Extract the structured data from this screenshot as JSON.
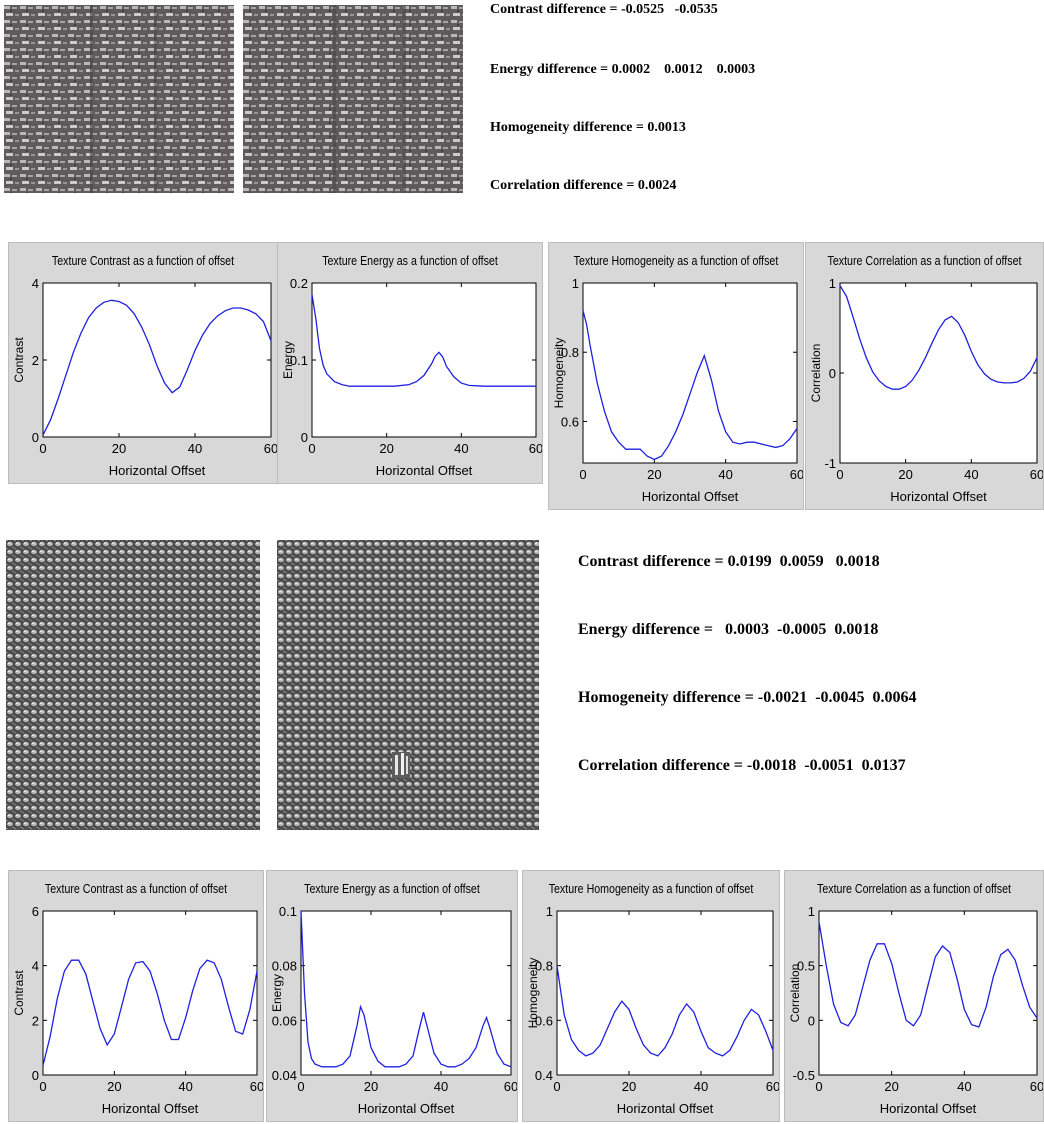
{
  "section1": {
    "stats": [
      {
        "label": "Contrast difference = ",
        "values": "-0.0525   -0.0535"
      },
      {
        "label": "Energy difference = ",
        "values": "0.0002    0.0012    0.0003"
      },
      {
        "label": "Homogeneity difference = ",
        "values": "0.0013"
      },
      {
        "label": "Correlation difference = ",
        "values": "0.0024"
      }
    ]
  },
  "section2": {
    "stats": [
      {
        "label": "Contrast difference = ",
        "values": "0.0199  0.0059   0.0018"
      },
      {
        "label": "Energy difference = ",
        "values": "  0.0003  -0.0005  0.0018"
      },
      {
        "label": "Homogeneity difference = ",
        "values": "-0.0021  -0.0045  0.0064"
      },
      {
        "label": "Correlation difference = ",
        "values": "-0.0018  -0.0051  0.0137"
      }
    ]
  },
  "colors": {
    "line": "#2020e0",
    "panel": "#d8d8d8",
    "axes_bg": "#ffffff",
    "fabric1": "#6f6868",
    "fabric2": "#5a5a5a"
  },
  "chart_data": [
    {
      "type": "line",
      "title": "Texture Contrast as a function of offset",
      "xlabel": "Horizontal Offset",
      "ylabel": "Contrast",
      "xlim": [
        0,
        60
      ],
      "ylim": [
        0,
        4
      ],
      "xticks": [
        "0",
        "20",
        "40",
        "60"
      ],
      "yticks": [
        "0",
        "2",
        "4"
      ],
      "ytickvals": [
        0,
        2,
        4
      ],
      "x": [
        0,
        2,
        4,
        6,
        8,
        10,
        12,
        14,
        16,
        18,
        20,
        22,
        24,
        26,
        28,
        30,
        32,
        34,
        36,
        38,
        40,
        42,
        44,
        46,
        48,
        50,
        52,
        54,
        56,
        58,
        60
      ],
      "series": [
        {
          "values": [
            0.05,
            0.45,
            1.0,
            1.6,
            2.2,
            2.7,
            3.1,
            3.35,
            3.5,
            3.55,
            3.52,
            3.42,
            3.2,
            2.85,
            2.4,
            1.85,
            1.4,
            1.15,
            1.3,
            1.75,
            2.25,
            2.65,
            2.95,
            3.15,
            3.28,
            3.35,
            3.35,
            3.3,
            3.2,
            3.0,
            2.5
          ]
        }
      ]
    },
    {
      "type": "line",
      "title": "Texture Energy as a function of offset",
      "xlabel": "Horizontal Offset",
      "ylabel": "Energy",
      "xlim": [
        0,
        60
      ],
      "ylim": [
        0,
        0.2
      ],
      "xticks": [
        "0",
        "20",
        "40",
        "60"
      ],
      "yticks": [
        "0",
        "0.1",
        "0.2"
      ],
      "ytickvals": [
        0,
        0.1,
        0.2
      ],
      "x": [
        0,
        1,
        2,
        3,
        4,
        6,
        8,
        10,
        14,
        18,
        22,
        26,
        28,
        30,
        32,
        33,
        34,
        35,
        36,
        38,
        40,
        42,
        46,
        50,
        55,
        60
      ],
      "series": [
        {
          "values": [
            0.185,
            0.155,
            0.115,
            0.093,
            0.082,
            0.072,
            0.068,
            0.066,
            0.066,
            0.066,
            0.066,
            0.068,
            0.072,
            0.08,
            0.095,
            0.105,
            0.11,
            0.104,
            0.092,
            0.078,
            0.07,
            0.067,
            0.066,
            0.066,
            0.066,
            0.066
          ]
        }
      ]
    },
    {
      "type": "line",
      "title": "Texture Homogeneity as a function of offset",
      "xlabel": "Horizontal Offset",
      "ylabel": "Homogeneity",
      "xlim": [
        0,
        60
      ],
      "ylim": [
        0.48,
        1.0
      ],
      "xticks": [
        "0",
        "20",
        "40",
        "60"
      ],
      "yticks": [
        "0.6",
        "0.8",
        "1"
      ],
      "ytickvals": [
        0.6,
        0.8,
        1.0
      ],
      "x": [
        0,
        1,
        2,
        4,
        6,
        8,
        10,
        12,
        14,
        16,
        18,
        20,
        22,
        24,
        26,
        28,
        30,
        32,
        34,
        36,
        38,
        40,
        42,
        44,
        46,
        48,
        50,
        52,
        54,
        56,
        58,
        60
      ],
      "series": [
        {
          "values": [
            0.92,
            0.88,
            0.82,
            0.71,
            0.63,
            0.57,
            0.54,
            0.52,
            0.52,
            0.52,
            0.5,
            0.49,
            0.5,
            0.53,
            0.57,
            0.62,
            0.68,
            0.74,
            0.79,
            0.72,
            0.63,
            0.57,
            0.54,
            0.535,
            0.54,
            0.54,
            0.535,
            0.53,
            0.525,
            0.53,
            0.55,
            0.58
          ]
        }
      ]
    },
    {
      "type": "line",
      "title": "Texture Correlation as a function of offset",
      "xlabel": "Horizontal Offset",
      "ylabel": "Correlation",
      "xlim": [
        0,
        60
      ],
      "ylim": [
        -1,
        1
      ],
      "xticks": [
        "0",
        "20",
        "40",
        "60"
      ],
      "yticks": [
        "-1",
        "0",
        "1"
      ],
      "ytickvals": [
        -1,
        0,
        1
      ],
      "x": [
        0,
        2,
        4,
        6,
        8,
        10,
        12,
        14,
        16,
        18,
        20,
        22,
        24,
        26,
        28,
        30,
        32,
        34,
        36,
        38,
        40,
        42,
        44,
        46,
        48,
        50,
        52,
        54,
        56,
        58,
        60
      ],
      "series": [
        {
          "values": [
            0.97,
            0.85,
            0.62,
            0.38,
            0.17,
            0.01,
            -0.09,
            -0.15,
            -0.18,
            -0.18,
            -0.15,
            -0.08,
            0.03,
            0.17,
            0.33,
            0.48,
            0.59,
            0.63,
            0.56,
            0.42,
            0.24,
            0.09,
            -0.01,
            -0.07,
            -0.1,
            -0.11,
            -0.11,
            -0.1,
            -0.06,
            0.02,
            0.17
          ]
        }
      ]
    },
    {
      "type": "line",
      "title": "Texture Contrast as a function of offset",
      "xlabel": "Horizontal Offset",
      "ylabel": "Contrast",
      "xlim": [
        0,
        60
      ],
      "ylim": [
        0,
        6
      ],
      "xticks": [
        "0",
        "20",
        "40",
        "60"
      ],
      "yticks": [
        "0",
        "2",
        "4",
        "6"
      ],
      "ytickvals": [
        0,
        2,
        4,
        6
      ],
      "x": [
        0,
        2,
        4,
        6,
        8,
        10,
        12,
        14,
        16,
        18,
        20,
        22,
        24,
        26,
        28,
        30,
        32,
        34,
        36,
        38,
        40,
        42,
        44,
        46,
        48,
        50,
        52,
        54,
        56,
        58,
        60
      ],
      "series": [
        {
          "values": [
            0.35,
            1.4,
            2.8,
            3.8,
            4.2,
            4.2,
            3.7,
            2.7,
            1.7,
            1.1,
            1.5,
            2.5,
            3.5,
            4.1,
            4.15,
            3.8,
            3.0,
            2.0,
            1.3,
            1.3,
            2.1,
            3.1,
            3.9,
            4.2,
            4.1,
            3.5,
            2.5,
            1.6,
            1.5,
            2.4,
            3.8
          ]
        }
      ]
    },
    {
      "type": "line",
      "title": "Texture Energy as a function of offset",
      "xlabel": "Horizontal Offset",
      "ylabel": "Energy",
      "xlim": [
        0,
        60
      ],
      "ylim": [
        0.04,
        0.1
      ],
      "xticks": [
        "0",
        "20",
        "40",
        "60"
      ],
      "yticks": [
        "0.04",
        "0.06",
        "0.08",
        "0.1"
      ],
      "ytickvals": [
        0.04,
        0.06,
        0.08,
        0.1
      ],
      "x": [
        0,
        1,
        2,
        3,
        4,
        6,
        8,
        10,
        12,
        14,
        16,
        17,
        18,
        20,
        22,
        24,
        26,
        28,
        30,
        32,
        34,
        35,
        36,
        38,
        40,
        42,
        44,
        46,
        48,
        50,
        52,
        53,
        54,
        56,
        58,
        60
      ],
      "series": [
        {
          "values": [
            0.1,
            0.07,
            0.052,
            0.046,
            0.044,
            0.043,
            0.043,
            0.043,
            0.044,
            0.047,
            0.058,
            0.065,
            0.062,
            0.05,
            0.045,
            0.043,
            0.043,
            0.043,
            0.044,
            0.047,
            0.058,
            0.063,
            0.058,
            0.048,
            0.044,
            0.043,
            0.043,
            0.044,
            0.046,
            0.05,
            0.058,
            0.061,
            0.057,
            0.048,
            0.044,
            0.043
          ]
        }
      ]
    },
    {
      "type": "line",
      "title": "Texture Homogeneity as a function of offset",
      "xlabel": "Horizontal Offset",
      "ylabel": "Homogeneity",
      "xlim": [
        0,
        60
      ],
      "ylim": [
        0.4,
        1.0
      ],
      "xticks": [
        "0",
        "20",
        "40",
        "60"
      ],
      "yticks": [
        "0.4",
        "0.6",
        "0.8",
        "1"
      ],
      "ytickvals": [
        0.4,
        0.6,
        0.8,
        1.0
      ],
      "x": [
        0,
        2,
        4,
        6,
        8,
        10,
        12,
        14,
        16,
        18,
        20,
        22,
        24,
        26,
        28,
        30,
        32,
        34,
        36,
        38,
        40,
        42,
        44,
        46,
        48,
        50,
        52,
        54,
        56,
        58,
        60
      ],
      "series": [
        {
          "values": [
            0.8,
            0.62,
            0.53,
            0.49,
            0.47,
            0.48,
            0.51,
            0.57,
            0.63,
            0.67,
            0.64,
            0.57,
            0.51,
            0.48,
            0.47,
            0.5,
            0.55,
            0.62,
            0.66,
            0.63,
            0.56,
            0.5,
            0.48,
            0.47,
            0.49,
            0.54,
            0.6,
            0.64,
            0.62,
            0.56,
            0.49
          ]
        }
      ]
    },
    {
      "type": "line",
      "title": "Texture Correlation as a function of offset",
      "xlabel": "Horizontal Offset",
      "ylabel": "Correlation",
      "xlim": [
        0,
        60
      ],
      "ylim": [
        -0.5,
        1
      ],
      "xticks": [
        "0",
        "20",
        "40",
        "60"
      ],
      "yticks": [
        "-0.5",
        "0",
        "0.5",
        "1"
      ],
      "ytickvals": [
        -0.5,
        0,
        0.5,
        1
      ],
      "x": [
        0,
        2,
        4,
        6,
        8,
        10,
        12,
        14,
        16,
        18,
        20,
        22,
        24,
        26,
        28,
        30,
        32,
        34,
        36,
        38,
        40,
        42,
        44,
        46,
        48,
        50,
        52,
        54,
        56,
        58,
        60
      ],
      "series": [
        {
          "values": [
            0.9,
            0.5,
            0.15,
            -0.02,
            -0.05,
            0.05,
            0.3,
            0.55,
            0.7,
            0.7,
            0.52,
            0.25,
            0.0,
            -0.05,
            0.05,
            0.32,
            0.58,
            0.68,
            0.62,
            0.38,
            0.1,
            -0.04,
            -0.06,
            0.12,
            0.4,
            0.6,
            0.65,
            0.55,
            0.32,
            0.12,
            0.02
          ]
        }
      ]
    }
  ]
}
